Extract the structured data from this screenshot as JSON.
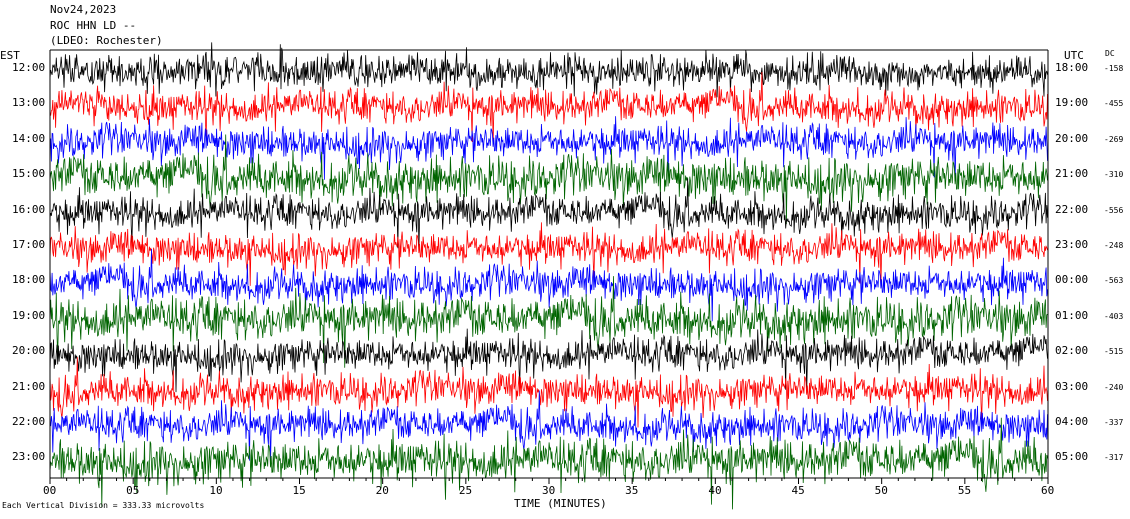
{
  "header": {
    "date": "Nov24,2023",
    "station": "ROC HHN LD --",
    "network": "(LDEO: Rochester)"
  },
  "axes": {
    "left_title": "EST",
    "right_title": "UTC",
    "dc_title": "DC",
    "xlabel": "TIME (MINUTES)",
    "x_ticks": [
      "00",
      "05",
      "10",
      "15",
      "20",
      "25",
      "30",
      "35",
      "40",
      "45",
      "50",
      "55",
      "60"
    ],
    "xlim": [
      0,
      60
    ]
  },
  "footer": {
    "note": "Each Vertical Division =  333.33 microvolts"
  },
  "rows": [
    {
      "est": "12:00",
      "utc": "18:00",
      "dc": "-158",
      "color": "#000000"
    },
    {
      "est": "13:00",
      "utc": "19:00",
      "dc": "-455",
      "color": "#ff0000"
    },
    {
      "est": "14:00",
      "utc": "20:00",
      "dc": "-269",
      "color": "#0000ff"
    },
    {
      "est": "15:00",
      "utc": "21:00",
      "dc": "-310",
      "color": "#006400"
    },
    {
      "est": "16:00",
      "utc": "22:00",
      "dc": "-556",
      "color": "#000000"
    },
    {
      "est": "17:00",
      "utc": "23:00",
      "dc": "-248",
      "color": "#ff0000"
    },
    {
      "est": "18:00",
      "utc": "00:00",
      "dc": "-563",
      "color": "#0000ff"
    },
    {
      "est": "19:00",
      "utc": "01:00",
      "dc": "-403",
      "color": "#006400"
    },
    {
      "est": "20:00",
      "utc": "02:00",
      "dc": "-515",
      "color": "#000000"
    },
    {
      "est": "21:00",
      "utc": "03:00",
      "dc": "-240",
      "color": "#ff0000"
    },
    {
      "est": "22:00",
      "utc": "04:00",
      "dc": "-337",
      "color": "#0000ff"
    },
    {
      "est": "23:00",
      "utc": "05:00",
      "dc": "-317",
      "color": "#006400"
    }
  ]
}
